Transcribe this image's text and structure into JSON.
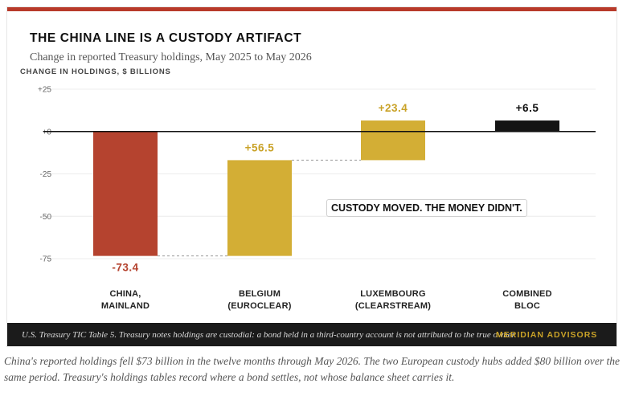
{
  "chart_data": {
    "type": "bar",
    "title": "THE CHINA LINE IS A CUSTODY ARTIFACT",
    "subtitle": "Change in reported Treasury holdings, May 2025 to May 2026",
    "ylabel": "CHANGE IN HOLDINGS, $ BILLIONS",
    "ylim": [
      -80,
      25
    ],
    "yticks": [
      25,
      0,
      -25,
      -50,
      -75
    ],
    "ytick_labels": [
      "+25",
      "+0",
      "-25",
      "-50",
      "-75"
    ],
    "grid": true,
    "bars": [
      {
        "category_lines": [
          "CHINA,",
          "MAINLAND"
        ],
        "start": 0,
        "end": -73.4,
        "value_label": "-73.4",
        "color": "#b5432f",
        "label_color": "#b5432f"
      },
      {
        "category_lines": [
          "BELGIUM",
          "(EUROCLEAR)"
        ],
        "start": -73.4,
        "end": -16.9,
        "value_label": "+56.5",
        "color": "#d3ae35",
        "label_color": "#c9a227"
      },
      {
        "category_lines": [
          "LUXEMBOURG",
          "(CLEARSTREAM)"
        ],
        "start": -16.9,
        "end": 6.5,
        "value_label": "+23.4",
        "color": "#d3ae35",
        "label_color": "#c9a227"
      },
      {
        "category_lines": [
          "COMBINED",
          "BLOC"
        ],
        "start": 0,
        "end": 6.5,
        "value_label": "+6.5",
        "color": "#141414",
        "label_color": "#111111"
      }
    ],
    "annotation": "CUSTODY MOVED. THE MONEY DIDN'T."
  },
  "footer": {
    "note": "U.S. Treasury TIC Table 5. Treasury notes holdings are custodial: a bond held in a third-country account is not attributed to the true owner.",
    "brand": "MERIDIAN ADVISORS",
    "colors": {
      "background": "#1b1b1b",
      "brand": "#c9a227"
    }
  },
  "caption": "China's reported holdings fell $73 billion in the twelve months through May 2026. The two European custody hubs added $80 billion over the same period. Treasury's holdings tables record where a bond settles, not whose balance sheet carries it.",
  "colors": {
    "accent_bar": "#b83a2a",
    "negative": "#b5432f",
    "positive": "#d3ae35",
    "net": "#141414"
  }
}
